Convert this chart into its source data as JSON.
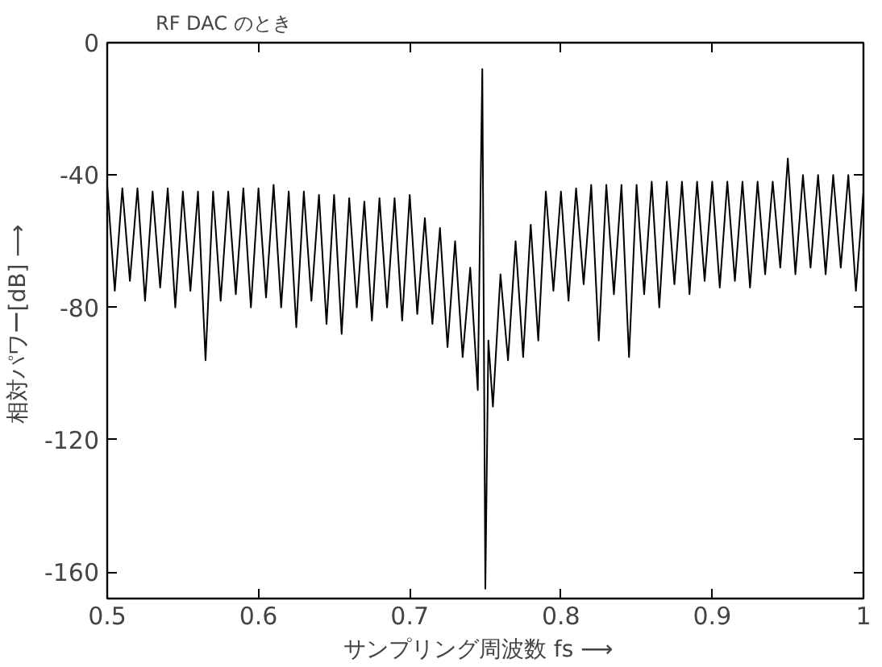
{
  "chart_data": {
    "type": "line",
    "title": "RF DAC のとき",
    "xlabel": "サンプリング周波数  fs  ⟶",
    "ylabel": "相対パワー[dB]  ⟶",
    "xlim": [
      0.5,
      1.0
    ],
    "ylim": [
      -168,
      0
    ],
    "xticks": [
      0.5,
      0.6,
      0.7,
      0.8,
      0.9,
      {
        "value": 1.0,
        "label": "1"
      }
    ],
    "yticks": [
      0,
      -40,
      -80,
      -120,
      -160
    ],
    "grid": false,
    "marker": "none",
    "line_style": "solid",
    "series": [
      {
        "color": "#000000",
        "x": [
          0.5,
          0.505,
          0.51,
          0.515,
          0.52,
          0.525,
          0.53,
          0.535,
          0.54,
          0.545,
          0.55,
          0.555,
          0.56,
          0.565,
          0.57,
          0.575,
          0.58,
          0.585,
          0.59,
          0.595,
          0.6,
          0.605,
          0.61,
          0.615,
          0.62,
          0.625,
          0.63,
          0.635,
          0.64,
          0.645,
          0.65,
          0.655,
          0.66,
          0.665,
          0.67,
          0.675,
          0.68,
          0.685,
          0.69,
          0.695,
          0.7,
          0.705,
          0.71,
          0.715,
          0.72,
          0.725,
          0.73,
          0.735,
          0.74,
          0.745,
          0.748,
          0.75,
          0.752,
          0.755,
          0.76,
          0.765,
          0.77,
          0.775,
          0.78,
          0.785,
          0.79,
          0.795,
          0.8,
          0.805,
          0.81,
          0.815,
          0.82,
          0.825,
          0.83,
          0.835,
          0.84,
          0.845,
          0.85,
          0.855,
          0.86,
          0.865,
          0.87,
          0.875,
          0.88,
          0.885,
          0.89,
          0.895,
          0.9,
          0.905,
          0.91,
          0.915,
          0.92,
          0.925,
          0.93,
          0.935,
          0.94,
          0.945,
          0.95,
          0.955,
          0.96,
          0.965,
          0.97,
          0.975,
          0.98,
          0.985,
          0.99,
          0.995,
          1.0
        ],
        "values": [
          -43,
          -75,
          -44,
          -72,
          -44,
          -78,
          -45,
          -74,
          -44,
          -80,
          -45,
          -75,
          -45,
          -96,
          -45,
          -78,
          -45,
          -76,
          -44,
          -80,
          -44,
          -77,
          -43,
          -80,
          -45,
          -86,
          -45,
          -78,
          -46,
          -85,
          -46,
          -88,
          -47,
          -80,
          -48,
          -84,
          -47,
          -80,
          -47,
          -84,
          -46,
          -82,
          -53,
          -85,
          -56,
          -92,
          -60,
          -95,
          -68,
          -105,
          -8,
          -165,
          -90,
          -110,
          -70,
          -96,
          -60,
          -95,
          -55,
          -90,
          -45,
          -75,
          -45,
          -78,
          -44,
          -73,
          -43,
          -90,
          -43,
          -76,
          -43,
          -95,
          -43,
          -76,
          -42,
          -80,
          -42,
          -73,
          -42,
          -76,
          -42,
          -72,
          -42,
          -74,
          -42,
          -72,
          -42,
          -74,
          -42,
          -70,
          -42,
          -68,
          -35,
          -70,
          -40,
          -68,
          -40,
          -70,
          -40,
          -68,
          -40,
          -75,
          -45
        ]
      }
    ]
  }
}
